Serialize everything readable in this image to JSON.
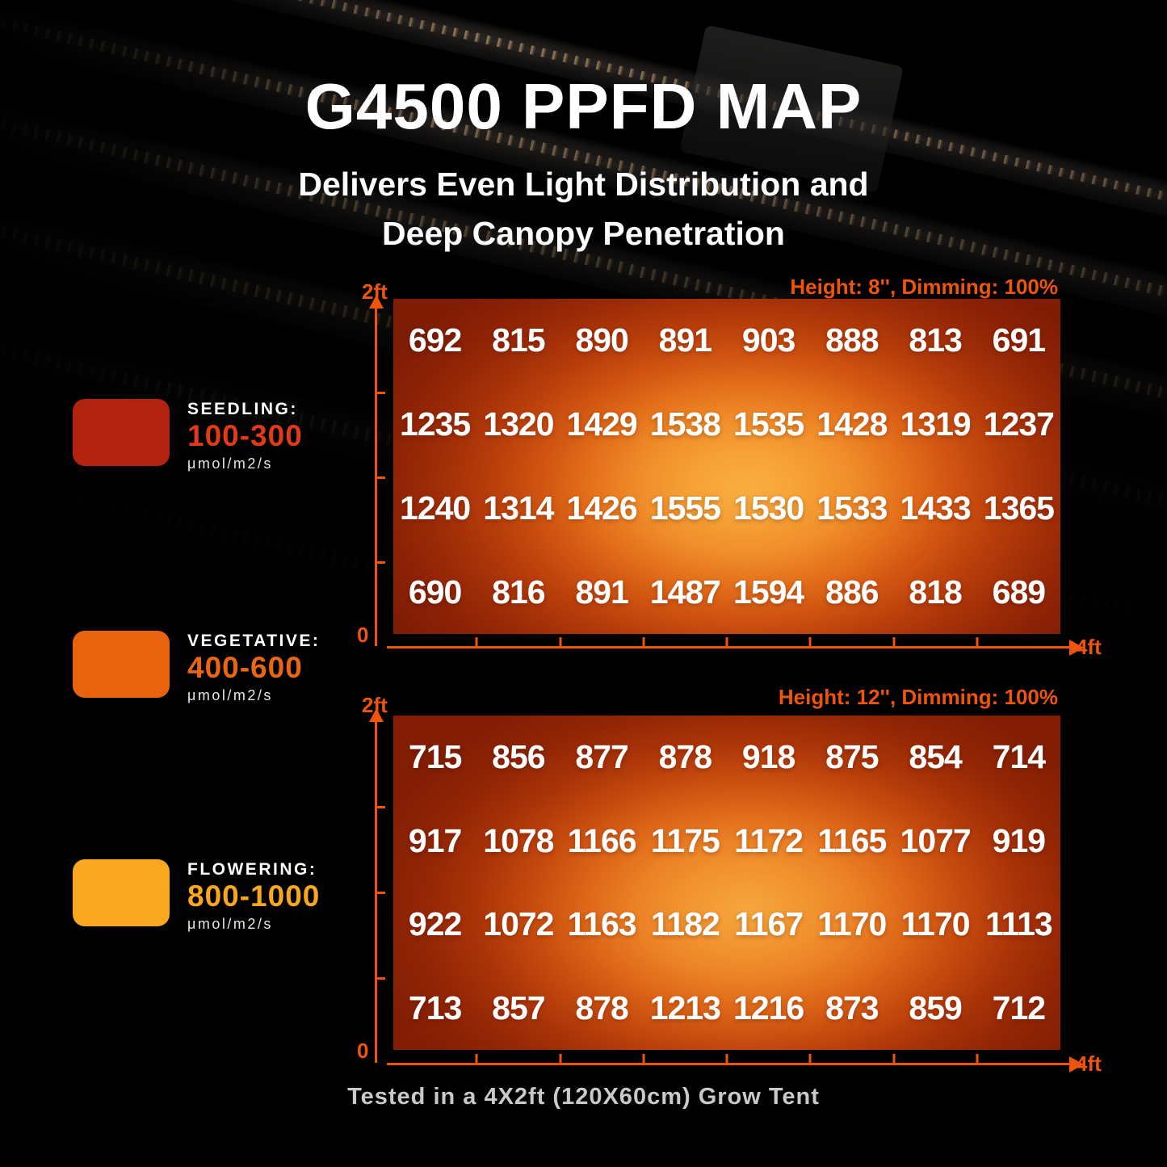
{
  "page": {
    "title": "G4500 PPFD MAP",
    "subtitle": [
      "Delivers Even Light Distribution and",
      "Deep Canopy Penetration"
    ],
    "footer_note": "Tested in a 4X2ft (120X60cm) Grow Tent",
    "accent_color": "#ef540d",
    "background_color": "#000000"
  },
  "legend": {
    "items": [
      {
        "label": "SEEDLING:",
        "range": "100-300",
        "unit": "μmol/m2/s",
        "swatch_color": "#b2230f",
        "range_color": "#e23a17"
      },
      {
        "label": "VEGETATIVE:",
        "range": "400-600",
        "unit": "μmol/m2/s",
        "swatch_color": "#e7630e",
        "range_color": "#ea660f"
      },
      {
        "label": "FLOWERING:",
        "range": "800-1000",
        "unit": "μmol/m2/s",
        "swatch_color": "#f8a71f",
        "range_color": "#f8a71f"
      }
    ]
  },
  "chart_data": [
    {
      "type": "heatmap",
      "title": "Height: 8'', Dimming: 100%",
      "height": "8''",
      "dimming": "100%",
      "unit": "μmol/m2/s",
      "x_axis": {
        "origin_label": "0",
        "max_label": "4ft",
        "segments": 8
      },
      "y_axis": {
        "max_label": "2ft",
        "segments": 4
      },
      "rows": [
        [
          692,
          815,
          890,
          891,
          903,
          888,
          813,
          691
        ],
        [
          1235,
          1320,
          1429,
          1538,
          1535,
          1428,
          1319,
          1237
        ],
        [
          1240,
          1314,
          1426,
          1555,
          1530,
          1533,
          1433,
          1365
        ],
        [
          690,
          816,
          891,
          1487,
          1594,
          886,
          818,
          689
        ]
      ],
      "color_scale": {
        "center": "#f9ae41",
        "edge": "#7e1c04"
      }
    },
    {
      "type": "heatmap",
      "title": "Height: 12'', Dimming: 100%",
      "height": "12''",
      "dimming": "100%",
      "unit": "μmol/m2/s",
      "x_axis": {
        "origin_label": "0",
        "max_label": "4ft",
        "segments": 8
      },
      "y_axis": {
        "max_label": "2ft",
        "segments": 4
      },
      "rows": [
        [
          715,
          856,
          877,
          878,
          918,
          875,
          854,
          714
        ],
        [
          917,
          1078,
          1166,
          1175,
          1172,
          1165,
          1077,
          919
        ],
        [
          922,
          1072,
          1163,
          1182,
          1167,
          1170,
          1170,
          1113
        ],
        [
          713,
          857,
          878,
          1213,
          1216,
          873,
          859,
          712
        ]
      ],
      "color_scale": {
        "center": "#f6a63c",
        "edge": "#831e04"
      }
    }
  ]
}
